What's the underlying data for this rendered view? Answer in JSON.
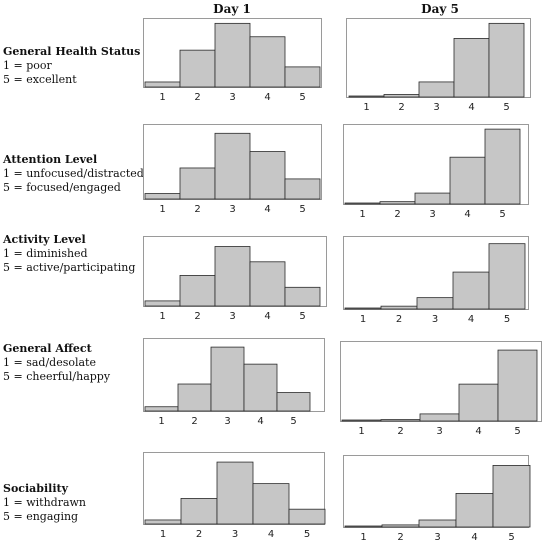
{
  "columns": [
    "Day 1",
    "Day 5"
  ],
  "rows": [
    {
      "title": "General Health Status",
      "lines": [
        "1 = poor",
        "5 = excellent"
      ]
    },
    {
      "title": "Attention Level",
      "lines": [
        "1 = unfocused/distracted",
        "5 = focused/engaged"
      ]
    },
    {
      "title": "Activity Level",
      "lines": [
        "1 = diminished",
        "5 = active/participating"
      ]
    },
    {
      "title": "General Affect",
      "lines": [
        "1 = sad/desolate",
        "5 = cheerful/happy"
      ]
    },
    {
      "title": "Sociability",
      "lines": [
        "1 = withdrawn",
        "5 = engaging"
      ]
    }
  ],
  "chart_data": [
    {
      "type": "bar",
      "row": "General Health Status",
      "column": "Day 1",
      "categories": [
        "1",
        "2",
        "3",
        "4",
        "5"
      ],
      "values": [
        3,
        22,
        38,
        30,
        12
      ],
      "ylim": [
        0,
        40
      ]
    },
    {
      "type": "bar",
      "row": "General Health Status",
      "column": "Day 5",
      "categories": [
        "1",
        "2",
        "3",
        "4",
        "5"
      ],
      "values": [
        0.5,
        1.5,
        9,
        35,
        44
      ],
      "ylim": [
        0,
        46
      ]
    },
    {
      "type": "bar",
      "row": "Attention Level",
      "column": "Day 1",
      "categories": [
        "1",
        "2",
        "3",
        "4",
        "5"
      ],
      "values": [
        3,
        17,
        36,
        26,
        11
      ],
      "ylim": [
        0,
        40
      ]
    },
    {
      "type": "bar",
      "row": "Attention Level",
      "column": "Day 5",
      "categories": [
        "1",
        "2",
        "3",
        "4",
        "5"
      ],
      "values": [
        0.5,
        1.5,
        7,
        30,
        48
      ],
      "ylim": [
        0,
        50
      ]
    },
    {
      "type": "bar",
      "row": "Activity Level",
      "column": "Day 1",
      "categories": [
        "1",
        "2",
        "3",
        "4",
        "5"
      ],
      "values": [
        3,
        18,
        35,
        26,
        11
      ],
      "ylim": [
        0,
        40
      ]
    },
    {
      "type": "bar",
      "row": "Activity Level",
      "column": "Day 5",
      "categories": [
        "1",
        "2",
        "3",
        "4",
        "5"
      ],
      "values": [
        0.5,
        2,
        8,
        26,
        46
      ],
      "ylim": [
        0,
        50
      ]
    },
    {
      "type": "bar",
      "row": "General Affect",
      "column": "Day 1",
      "categories": [
        "1",
        "2",
        "3",
        "4",
        "5"
      ],
      "values": [
        3,
        19,
        45,
        33,
        13
      ],
      "ylim": [
        0,
        50
      ]
    },
    {
      "type": "bar",
      "row": "General Affect",
      "column": "Day 5",
      "categories": [
        "1",
        "2",
        "3",
        "4",
        "5"
      ],
      "values": [
        0.5,
        1,
        5,
        26,
        50
      ],
      "ylim": [
        0,
        55
      ]
    },
    {
      "type": "bar",
      "row": "Sociability",
      "column": "Day 1",
      "categories": [
        "1",
        "2",
        "3",
        "4",
        "5"
      ],
      "values": [
        3,
        19,
        46,
        30,
        11
      ],
      "ylim": [
        0,
        52
      ]
    },
    {
      "type": "bar",
      "row": "Sociability",
      "column": "Day 5",
      "categories": [
        "1",
        "2",
        "3",
        "4",
        "5"
      ],
      "values": [
        0.5,
        1.5,
        5,
        24,
        44
      ],
      "ylim": [
        0,
        50
      ]
    }
  ]
}
